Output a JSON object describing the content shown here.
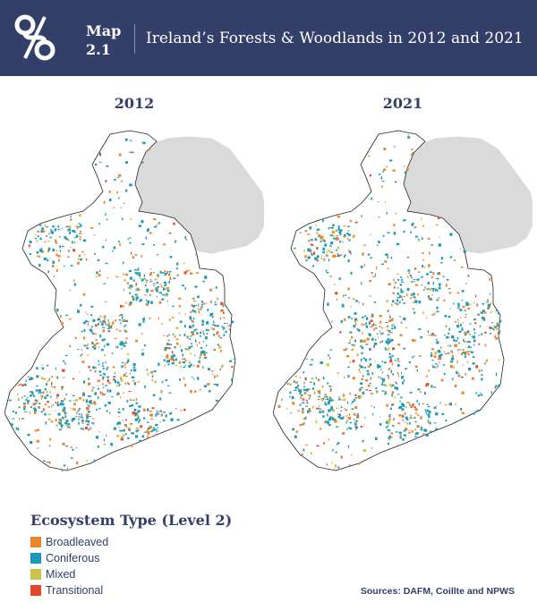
{
  "header": {
    "logo_icon": "link-knot-logo-icon",
    "map_label": "Map",
    "map_number": "2.1",
    "title": "Ireland’s Forests & Woodlands in 2012 and 2021",
    "background": "#323f68"
  },
  "maps": [
    {
      "year": "2012"
    },
    {
      "year": "2021"
    }
  ],
  "legend": {
    "title": "Ecosystem Type (Level 2)",
    "items": [
      {
        "label": "Broadleaved",
        "color": "#e8872b"
      },
      {
        "label": "Coniferous",
        "color": "#1d9bb2"
      },
      {
        "label": "Mixed",
        "color": "#c9c44a"
      },
      {
        "label": "Transitional",
        "color": "#e3472a"
      }
    ]
  },
  "colors": {
    "northern_ireland_fill": "#dadada",
    "outline": "#222222",
    "text": "#323f68"
  },
  "sources": "Sources: DAFM, Coillte and NPWS"
}
